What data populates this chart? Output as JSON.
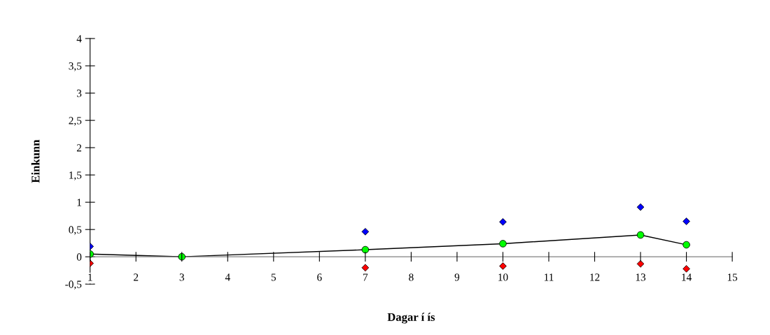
{
  "chart_data": {
    "type": "scatter",
    "xlabel": "Dagar í ís",
    "ylabel": "Einkunn",
    "x": [
      1,
      3,
      7,
      10,
      13,
      14
    ],
    "series": [
      {
        "color": "#0000ff",
        "marker": "diamond",
        "values": [
          0.19,
          0.0,
          0.46,
          0.64,
          0.91,
          0.65
        ]
      },
      {
        "type": "line",
        "color": "#00ff00",
        "marker": "circle",
        "values": [
          0.05,
          0.0,
          0.13,
          0.24,
          0.4,
          0.22
        ]
      },
      {
        "color": "#ff0000",
        "marker": "diamond",
        "values": [
          -0.12,
          null,
          -0.2,
          -0.17,
          -0.13,
          -0.22
        ]
      }
    ],
    "xlim": [
      1,
      15
    ],
    "xticks": [
      1,
      2,
      3,
      4,
      5,
      6,
      7,
      8,
      9,
      10,
      11,
      12,
      13,
      14,
      15
    ],
    "ylim": [
      -0.5,
      4
    ],
    "yticks": [
      {
        "value": -0.5,
        "label": "-0,5"
      },
      0,
      {
        "value": 0.5,
        "label": "0,5"
      },
      1,
      {
        "value": 1.5,
        "label": "1,5"
      },
      2,
      {
        "value": 2.5,
        "label": "2,5"
      },
      3,
      {
        "value": 3.5,
        "label": "3,5"
      },
      4
    ],
    "grid": false
  }
}
